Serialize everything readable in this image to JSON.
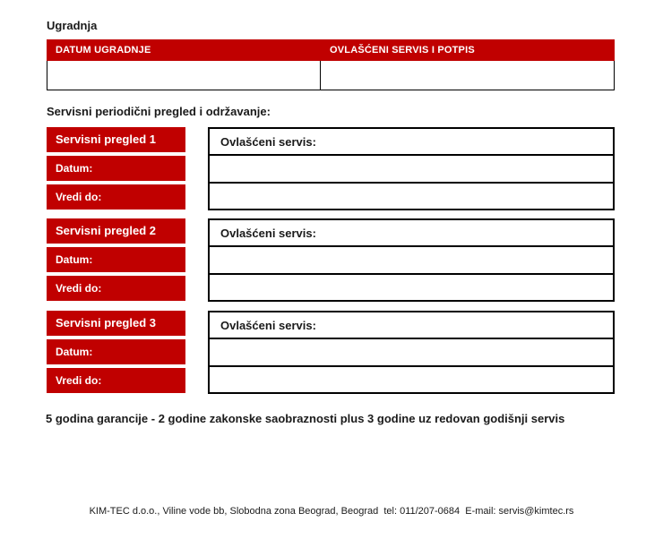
{
  "page": {
    "title": "Ugradnja",
    "section_heading": "Servisni periodični pregled i održavanje:",
    "warranty_note": "5 godina garancije - 2 godine zakonske saobraznosti plus 3 godine uz redovan godišnji servis",
    "footer": "KIM-TEC d.o.o., Viline vode bb, Slobodna zona Beograd, Beograd  tel: 011/207-0684  E-mail: servis@kimtec.rs"
  },
  "colors": {
    "accent_red": "#C00000",
    "border_black": "#000000",
    "text": "#1A1A1A",
    "background": "#FFFFFF"
  },
  "installation_table": {
    "headers": [
      "DATUM UGRADNJE",
      "OVLAŠĆENI SERVIS I POTPIS"
    ],
    "rows": [
      [
        "",
        ""
      ]
    ]
  },
  "service_blocks": [
    {
      "title": "Servisni pregled 1",
      "fields": [
        "Datum:",
        "Vredi do:"
      ],
      "right_header": "Ovlašćeni servis:",
      "right_values": [
        "",
        ""
      ]
    },
    {
      "title": "Servisni pregled 2",
      "fields": [
        "Datum:",
        "Vredi do:"
      ],
      "right_header": "Ovlašćeni servis:",
      "right_values": [
        "",
        ""
      ]
    },
    {
      "title": "Servisni pregled 3",
      "fields": [
        "Datum:",
        "Vredi do:"
      ],
      "right_header": "Ovlašćeni servis:",
      "right_values": [
        "",
        ""
      ]
    }
  ]
}
